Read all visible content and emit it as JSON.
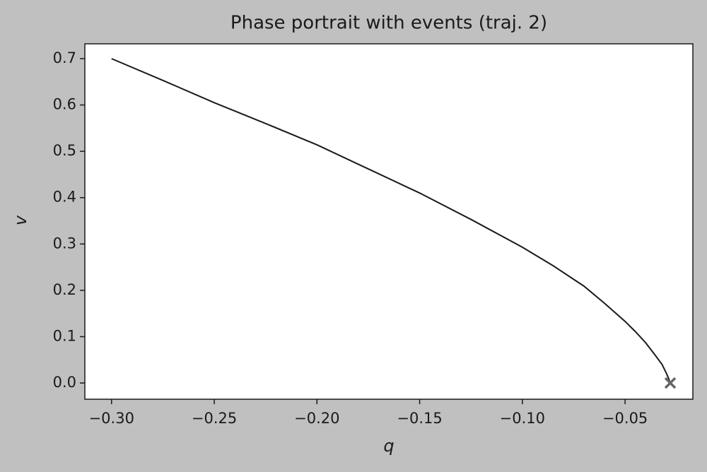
{
  "chart_data": {
    "type": "line",
    "title": "Phase portrait with events (traj. 2)",
    "xlabel": "q",
    "ylabel": "v",
    "x": [
      -0.3,
      -0.275,
      -0.25,
      -0.225,
      -0.2,
      -0.175,
      -0.15,
      -0.125,
      -0.1,
      -0.085,
      -0.07,
      -0.06,
      -0.05,
      -0.045,
      -0.04,
      -0.035,
      -0.032,
      -0.03,
      -0.029,
      -0.028
    ],
    "values": [
      0.7,
      0.653,
      0.605,
      0.56,
      0.514,
      0.462,
      0.41,
      0.353,
      0.293,
      0.253,
      0.209,
      0.172,
      0.133,
      0.111,
      0.087,
      0.058,
      0.04,
      0.022,
      0.012,
      0.0
    ],
    "color": "#1a1a1a",
    "event_x": [
      -0.028
    ],
    "event_values": [
      0.0
    ],
    "event_color": "#666666",
    "xlim": [
      -0.313,
      -0.017
    ],
    "ylim": [
      -0.035,
      0.732
    ],
    "xticks": [
      {
        "value": -0.3,
        "label": "−0.30"
      },
      {
        "value": -0.25,
        "label": "−0.25"
      },
      {
        "value": -0.2,
        "label": "−0.20"
      },
      {
        "value": -0.15,
        "label": "−0.15"
      },
      {
        "value": -0.1,
        "label": "−0.10"
      },
      {
        "value": -0.05,
        "label": "−0.05"
      }
    ],
    "yticks": [
      {
        "value": 0,
        "label": "0.0"
      },
      0.1,
      0.2,
      0.3,
      0.4,
      0.5,
      0.6,
      0.7
    ],
    "grid": false
  }
}
